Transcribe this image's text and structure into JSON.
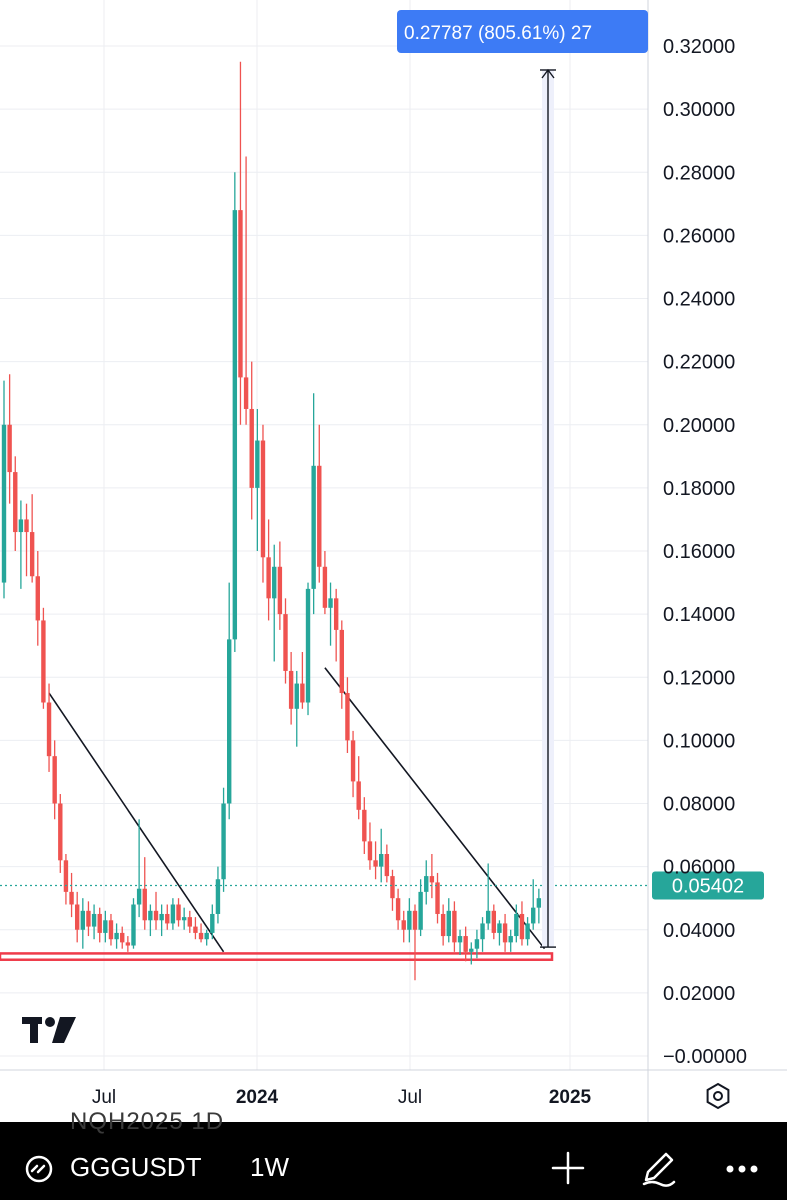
{
  "chart_data": {
    "type": "candlestick",
    "symbol": "GGGUSDT",
    "interval": "1W",
    "y_ticks": [
      "0.32000",
      "0.30000",
      "0.28000",
      "0.26000",
      "0.24000",
      "0.22000",
      "0.20000",
      "0.18000",
      "0.16000",
      "0.14000",
      "0.12000",
      "0.10000",
      "0.08000",
      "0.06000",
      "0.04000",
      "0.02000",
      "−0.00000"
    ],
    "ylim": [
      -0.003,
      0.333
    ],
    "x_labels": [
      {
        "label": "Jul",
        "bold": false
      },
      {
        "label": "2024",
        "bold": true
      },
      {
        "label": "Jul",
        "bold": false
      },
      {
        "label": "2025",
        "bold": true
      }
    ],
    "current_price": "0.05402",
    "current_price_value": 0.05402,
    "measure_label": "0.27787 (805.61%) 27",
    "measure_range": [
      0.0345,
      0.3124
    ],
    "support_zone": [
      0.0305,
      0.0325
    ],
    "up_color": "#26a69a",
    "down_color": "#ef5350",
    "ohlc": [
      [
        0.15,
        0.214,
        0.145,
        0.2
      ],
      [
        0.2,
        0.216,
        0.175,
        0.185
      ],
      [
        0.185,
        0.19,
        0.16,
        0.166
      ],
      [
        0.166,
        0.176,
        0.148,
        0.17
      ],
      [
        0.17,
        0.175,
        0.152,
        0.166
      ],
      [
        0.166,
        0.178,
        0.15,
        0.152
      ],
      [
        0.152,
        0.16,
        0.13,
        0.138
      ],
      [
        0.138,
        0.142,
        0.11,
        0.112
      ],
      [
        0.112,
        0.118,
        0.09,
        0.095
      ],
      [
        0.095,
        0.1,
        0.075,
        0.08
      ],
      [
        0.08,
        0.083,
        0.058,
        0.062
      ],
      [
        0.062,
        0.064,
        0.048,
        0.052
      ],
      [
        0.052,
        0.058,
        0.044,
        0.048
      ],
      [
        0.048,
        0.052,
        0.036,
        0.04
      ],
      [
        0.04,
        0.05,
        0.034,
        0.046
      ],
      [
        0.046,
        0.049,
        0.038,
        0.041
      ],
      [
        0.041,
        0.048,
        0.037,
        0.045
      ],
      [
        0.045,
        0.047,
        0.036,
        0.039
      ],
      [
        0.039,
        0.046,
        0.036,
        0.043
      ],
      [
        0.043,
        0.045,
        0.035,
        0.037
      ],
      [
        0.037,
        0.042,
        0.034,
        0.039
      ],
      [
        0.039,
        0.041,
        0.034,
        0.036
      ],
      [
        0.036,
        0.038,
        0.033,
        0.035
      ],
      [
        0.035,
        0.05,
        0.034,
        0.048
      ],
      [
        0.048,
        0.075,
        0.044,
        0.053
      ],
      [
        0.053,
        0.063,
        0.04,
        0.043
      ],
      [
        0.043,
        0.048,
        0.038,
        0.046
      ],
      [
        0.046,
        0.052,
        0.04,
        0.043
      ],
      [
        0.043,
        0.048,
        0.038,
        0.045
      ],
      [
        0.045,
        0.048,
        0.04,
        0.042
      ],
      [
        0.042,
        0.05,
        0.04,
        0.048
      ],
      [
        0.048,
        0.05,
        0.041,
        0.043
      ],
      [
        0.043,
        0.047,
        0.04,
        0.044
      ],
      [
        0.044,
        0.046,
        0.039,
        0.041
      ],
      [
        0.041,
        0.044,
        0.037,
        0.039
      ],
      [
        0.039,
        0.042,
        0.036,
        0.037
      ],
      [
        0.037,
        0.04,
        0.035,
        0.039
      ],
      [
        0.039,
        0.048,
        0.037,
        0.045
      ],
      [
        0.045,
        0.06,
        0.042,
        0.056
      ],
      [
        0.056,
        0.085,
        0.052,
        0.08
      ],
      [
        0.08,
        0.15,
        0.075,
        0.132
      ],
      [
        0.132,
        0.28,
        0.128,
        0.268
      ],
      [
        0.268,
        0.315,
        0.2,
        0.215
      ],
      [
        0.215,
        0.285,
        0.2,
        0.205
      ],
      [
        0.205,
        0.22,
        0.17,
        0.18
      ],
      [
        0.18,
        0.205,
        0.16,
        0.195
      ],
      [
        0.195,
        0.2,
        0.15,
        0.158
      ],
      [
        0.158,
        0.17,
        0.138,
        0.145
      ],
      [
        0.145,
        0.162,
        0.125,
        0.155
      ],
      [
        0.155,
        0.163,
        0.135,
        0.14
      ],
      [
        0.14,
        0.145,
        0.118,
        0.122
      ],
      [
        0.122,
        0.128,
        0.105,
        0.11
      ],
      [
        0.11,
        0.122,
        0.098,
        0.118
      ],
      [
        0.118,
        0.128,
        0.11,
        0.112
      ],
      [
        0.112,
        0.15,
        0.108,
        0.148
      ],
      [
        0.148,
        0.21,
        0.14,
        0.187
      ],
      [
        0.187,
        0.2,
        0.15,
        0.155
      ],
      [
        0.155,
        0.16,
        0.14,
        0.142
      ],
      [
        0.142,
        0.15,
        0.13,
        0.145
      ],
      [
        0.145,
        0.148,
        0.125,
        0.135
      ],
      [
        0.135,
        0.138,
        0.11,
        0.115
      ],
      [
        0.115,
        0.12,
        0.096,
        0.1
      ],
      [
        0.1,
        0.103,
        0.082,
        0.087
      ],
      [
        0.087,
        0.095,
        0.075,
        0.078
      ],
      [
        0.078,
        0.082,
        0.064,
        0.068
      ],
      [
        0.068,
        0.074,
        0.059,
        0.062
      ],
      [
        0.062,
        0.068,
        0.056,
        0.06
      ],
      [
        0.06,
        0.072,
        0.055,
        0.064
      ],
      [
        0.064,
        0.067,
        0.055,
        0.057
      ],
      [
        0.057,
        0.059,
        0.046,
        0.05
      ],
      [
        0.05,
        0.053,
        0.04,
        0.043
      ],
      [
        0.043,
        0.046,
        0.036,
        0.04
      ],
      [
        0.04,
        0.05,
        0.036,
        0.046
      ],
      [
        0.046,
        0.048,
        0.024,
        0.04
      ],
      [
        0.04,
        0.056,
        0.038,
        0.052
      ],
      [
        0.052,
        0.062,
        0.048,
        0.057
      ],
      [
        0.057,
        0.064,
        0.05,
        0.055
      ],
      [
        0.055,
        0.058,
        0.042,
        0.045
      ],
      [
        0.045,
        0.048,
        0.035,
        0.038
      ],
      [
        0.038,
        0.05,
        0.036,
        0.046
      ],
      [
        0.046,
        0.049,
        0.033,
        0.036
      ],
      [
        0.036,
        0.04,
        0.032,
        0.038
      ],
      [
        0.038,
        0.041,
        0.03,
        0.033
      ],
      [
        0.033,
        0.036,
        0.029,
        0.034
      ],
      [
        0.034,
        0.04,
        0.031,
        0.037
      ],
      [
        0.037,
        0.044,
        0.033,
        0.042
      ],
      [
        0.042,
        0.061,
        0.04,
        0.046
      ],
      [
        0.046,
        0.048,
        0.037,
        0.039
      ],
      [
        0.039,
        0.043,
        0.035,
        0.042
      ],
      [
        0.042,
        0.045,
        0.033,
        0.036
      ],
      [
        0.036,
        0.04,
        0.033,
        0.038
      ],
      [
        0.038,
        0.048,
        0.036,
        0.045
      ],
      [
        0.045,
        0.049,
        0.035,
        0.037
      ],
      [
        0.037,
        0.044,
        0.035,
        0.042
      ],
      [
        0.042,
        0.056,
        0.04,
        0.047
      ],
      [
        0.047,
        0.053,
        0.042,
        0.05
      ],
      [
        0.05,
        0.057,
        0.046,
        0.054
      ]
    ]
  },
  "toolbar": {
    "ghost_text": "NQH2025     1D",
    "symbol": "GGGUSDT",
    "interval": "1W",
    "icons": [
      "link-icon",
      "plus-icon",
      "pencil-icon",
      "more-icon",
      "settings-icon",
      "tradingview-logo"
    ]
  }
}
